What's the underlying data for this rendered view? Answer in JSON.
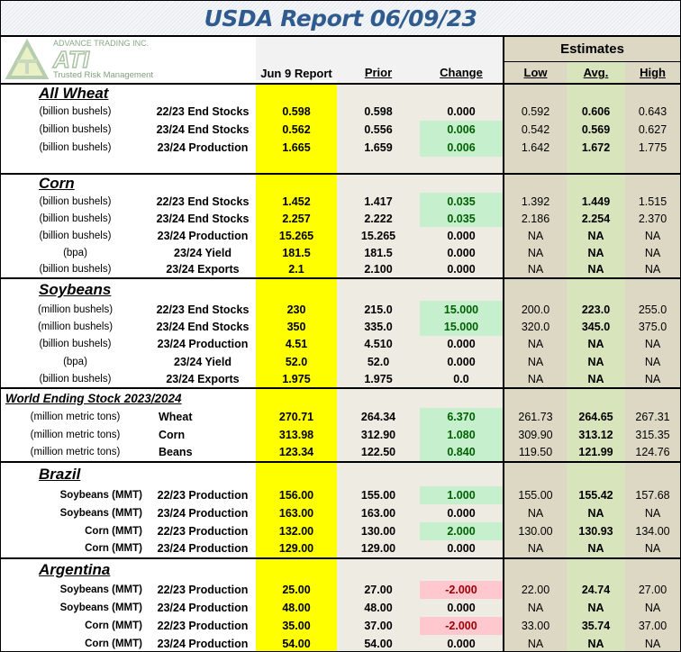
{
  "title": "USDA Report 06/09/23",
  "logo": {
    "company": "ADVANCE TRADING INC.",
    "mark": "ATI",
    "tagline": "Trusted Risk Management"
  },
  "headers": {
    "jun9": "Jun 9 Report",
    "prior": "Prior",
    "change": "Change",
    "estimates": "Estimates",
    "low": "Low",
    "avg": "Avg.",
    "high": "High"
  },
  "colors": {
    "report_col": "#ffff00",
    "positive_bg": "#c6efce",
    "negative_bg": "#ffc7ce",
    "title": "#2f5b8f"
  },
  "sections": [
    {
      "title": "All Wheat",
      "rows": [
        {
          "unit": "(billion bushels)",
          "label": "22/23 End Stocks",
          "jun9": "0.598",
          "prior": "0.598",
          "change": "0.000",
          "low": "0.592",
          "avg": "0.606",
          "high": "0.643"
        },
        {
          "unit": "(billion bushels)",
          "label": "23/24 End Stocks",
          "jun9": "0.562",
          "prior": "0.556",
          "change": "0.006",
          "change_status": "up",
          "low": "0.542",
          "avg": "0.569",
          "high": "0.627"
        },
        {
          "unit": "(billion bushels)",
          "label": "23/24 Production",
          "jun9": "1.665",
          "prior": "1.659",
          "change": "0.006",
          "change_status": "up",
          "low": "1.642",
          "avg": "1.672",
          "high": "1.775"
        }
      ]
    },
    {
      "title": "Corn",
      "rows": [
        {
          "unit": "(billion bushels)",
          "label": "22/23 End Stocks",
          "jun9": "1.452",
          "prior": "1.417",
          "change": "0.035",
          "change_status": "up",
          "low": "1.392",
          "avg": "1.449",
          "high": "1.515"
        },
        {
          "unit": "(billion bushels)",
          "label": "23/24 End Stocks",
          "jun9": "2.257",
          "prior": "2.222",
          "change": "0.035",
          "change_status": "up",
          "low": "2.186",
          "avg": "2.254",
          "high": "2.370"
        },
        {
          "unit": "(billion bushels)",
          "label": "23/24 Production",
          "jun9": "15.265",
          "prior": "15.265",
          "change": "0.000",
          "low": "NA",
          "avg": "NA",
          "high": "NA"
        },
        {
          "unit": "(bpa)",
          "label": "23/24 Yield",
          "jun9": "181.5",
          "prior": "181.5",
          "change": "0.000",
          "low": "NA",
          "avg": "NA",
          "high": "NA"
        },
        {
          "unit": "(billion bushels)",
          "label": "23/24 Exports",
          "jun9": "2.1",
          "prior": "2.100",
          "change": "0.000",
          "low": "NA",
          "avg": "NA",
          "high": "NA"
        }
      ]
    },
    {
      "title": "Soybeans",
      "rows": [
        {
          "unit": "(million bushels)",
          "label": "22/23 End Stocks",
          "jun9": "230",
          "prior": "215.0",
          "change": "15.000",
          "change_status": "up",
          "low": "200.0",
          "avg": "223.0",
          "high": "255.0"
        },
        {
          "unit": "(million bushels)",
          "label": "23/24 End Stocks",
          "jun9": "350",
          "prior": "335.0",
          "change": "15.000",
          "change_status": "up",
          "low": "320.0",
          "avg": "345.0",
          "high": "375.0"
        },
        {
          "unit": "(billion bushels)",
          "label": "23/24 Production",
          "jun9": "4.51",
          "prior": "4.510",
          "change": "0.000",
          "low": "NA",
          "avg": "NA",
          "high": "NA"
        },
        {
          "unit": "(bpa)",
          "label": "23/24 Yield",
          "jun9": "52.0",
          "prior": "52.0",
          "change": "0.000",
          "low": "NA",
          "avg": "NA",
          "high": "NA"
        },
        {
          "unit": "(billion bushels)",
          "label": "23/24 Exports",
          "jun9": "1.975",
          "prior": "1.975",
          "change": "0.0",
          "low": "NA",
          "avg": "NA",
          "high": "NA"
        }
      ]
    },
    {
      "title": "World Ending Stock 2023/2024",
      "rows": [
        {
          "unit": "(million metric tons)",
          "label": "Wheat",
          "jun9": "270.71",
          "prior": "264.34",
          "change": "6.370",
          "change_status": "up",
          "low": "261.73",
          "avg": "264.65",
          "high": "267.31"
        },
        {
          "unit": "(million metric tons)",
          "label": "Corn",
          "jun9": "313.98",
          "prior": "312.90",
          "change": "1.080",
          "change_status": "up",
          "low": "309.90",
          "avg": "313.12",
          "high": "315.35"
        },
        {
          "unit": "(million metric tons)",
          "label": "Beans",
          "jun9": "123.34",
          "prior": "122.50",
          "change": "0.840",
          "change_status": "up",
          "low": "119.50",
          "avg": "121.99",
          "high": "124.76"
        }
      ]
    },
    {
      "title": "Brazil",
      "rows": [
        {
          "unit": "Soybeans  (MMT)",
          "label": "22/23 Production",
          "jun9": "156.00",
          "prior": "155.00",
          "change": "1.000",
          "change_status": "up",
          "low": "155.00",
          "avg": "155.42",
          "high": "157.68"
        },
        {
          "unit": "Soybeans  (MMT)",
          "label": "23/24 Production",
          "jun9": "163.00",
          "prior": "163.00",
          "change": "0.000",
          "low": "NA",
          "avg": "NA",
          "high": "NA"
        },
        {
          "unit": "Corn  (MMT)",
          "label": "22/23 Production",
          "jun9": "132.00",
          "prior": "130.00",
          "change": "2.000",
          "change_status": "up",
          "low": "130.00",
          "avg": "130.93",
          "high": "134.00"
        },
        {
          "unit": "Corn  (MMT)",
          "label": "23/24 Production",
          "jun9": "129.00",
          "prior": "129.00",
          "change": "0.000",
          "low": "NA",
          "avg": "NA",
          "high": "NA"
        }
      ]
    },
    {
      "title": "Argentina",
      "rows": [
        {
          "unit": "Soybeans  (MMT)",
          "label": "22/23 Production",
          "jun9": "25.00",
          "prior": "27.00",
          "change": "-2.000",
          "change_status": "down",
          "low": "22.00",
          "avg": "24.74",
          "high": "27.00"
        },
        {
          "unit": "Soybeans  (MMT)",
          "label": "23/24 Production",
          "jun9": "48.00",
          "prior": "48.00",
          "change": "0.000",
          "low": "NA",
          "avg": "NA",
          "high": "NA"
        },
        {
          "unit": "Corn  (MMT)",
          "label": "22/23 Production",
          "jun9": "35.00",
          "prior": "37.00",
          "change": "-2.000",
          "change_status": "down",
          "low": "33.00",
          "avg": "35.74",
          "high": "37.00"
        },
        {
          "unit": "Corn  (MMT)",
          "label": "23/24 Production",
          "jun9": "54.00",
          "prior": "54.00",
          "change": "0.000",
          "low": "NA",
          "avg": "NA",
          "high": "NA"
        }
      ]
    }
  ]
}
